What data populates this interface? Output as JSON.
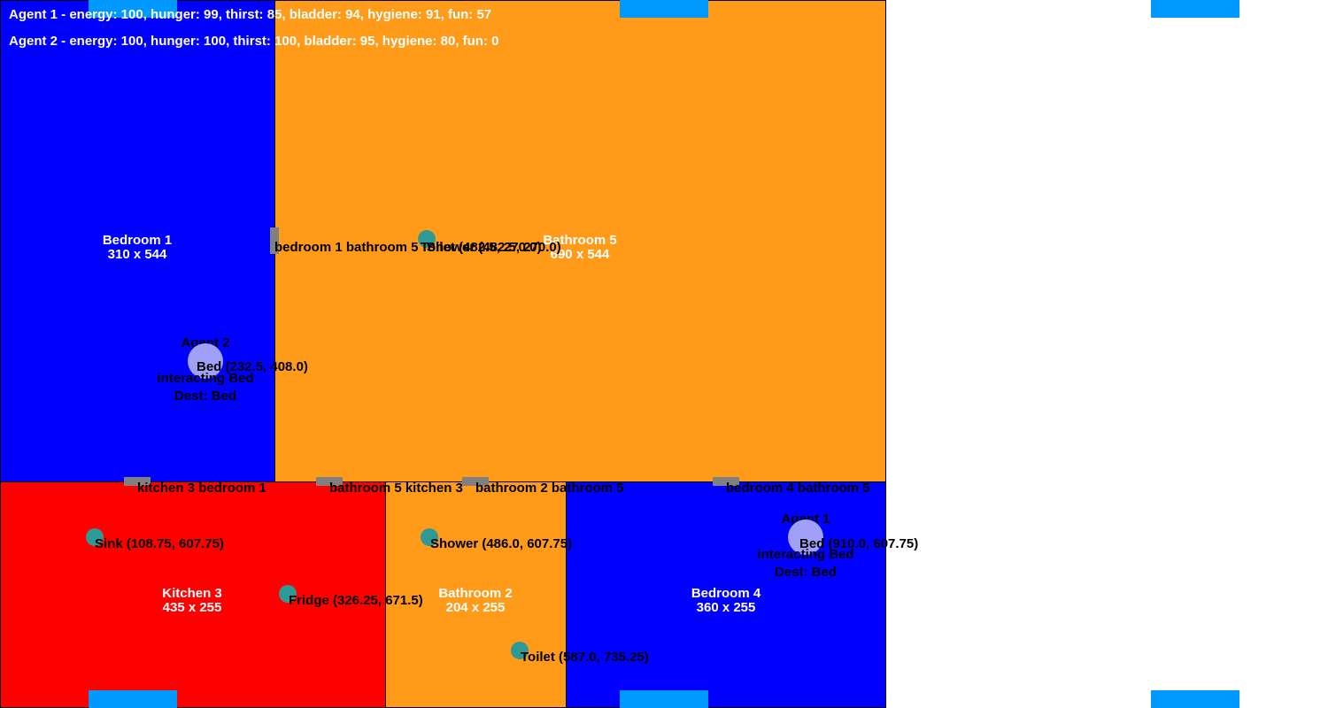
{
  "colors": {
    "bedroom": "#0000ff",
    "bathroom": "#ff9b19",
    "kitchen": "#ff0000",
    "door": "#808080",
    "object": "#2e9a96",
    "agent": "#a0a0f8",
    "window": "#0099ff"
  },
  "status": {
    "agent1": "Agent 1 - energy: 100, hunger: 99, thirst: 85, bladder: 94, hygiene: 91, fun: 57",
    "agent2": "Agent 2 - energy: 100, hunger: 100, thirst: 100, bladder: 95, hygiene: 80, fun: 0"
  },
  "rooms": {
    "bedroom1": {
      "name": "Bedroom 1",
      "size": "310 x 544",
      "type": "bedroom"
    },
    "bathroom5": {
      "name": "Bathroom 5",
      "size": "690 x 544",
      "type": "bathroom"
    },
    "kitchen3": {
      "name": "Kitchen 3",
      "size": "435 x 255",
      "type": "kitchen"
    },
    "bathroom2": {
      "name": "Bathroom 2",
      "size": "204 x 255",
      "type": "bathroom"
    },
    "bedroom4": {
      "name": "Bedroom 4",
      "size": "360 x 255",
      "type": "bedroom"
    }
  },
  "doors": {
    "bedroom1_bathroom5": "bedroom 1 bathroom 5",
    "kitchen3_bedroom1": "kitchen 3 bedroom 1",
    "bathroom5_kitchen3": "bathroom 5 kitchen 3",
    "bathroom2_bathroom5": "bathroom 2 bathroom 5",
    "bedroom4_bathroom5": "bedroom 4 bathroom 5"
  },
  "objects": {
    "toilet5": "Toilet (482.5, 270.0)",
    "shower5": "Shower (482.5, 270.0)",
    "sink": "Sink (108.75, 607.75)",
    "fridge": "Fridge (326.25, 671.5)",
    "shower2": "Shower (486.0, 607.75)",
    "toilet2": "Toilet (587.0, 735.25)"
  },
  "agents": {
    "agent2": {
      "name": "Agent 2",
      "bed": "Bed (232.5, 408.0)",
      "state": "interacting Bed",
      "dest": "Dest: Bed"
    },
    "agent1": {
      "name": "Agent 1",
      "bed": "Bed (910.0, 607.75)",
      "state": "interacting Bed",
      "dest": "Dest: Bed"
    }
  }
}
